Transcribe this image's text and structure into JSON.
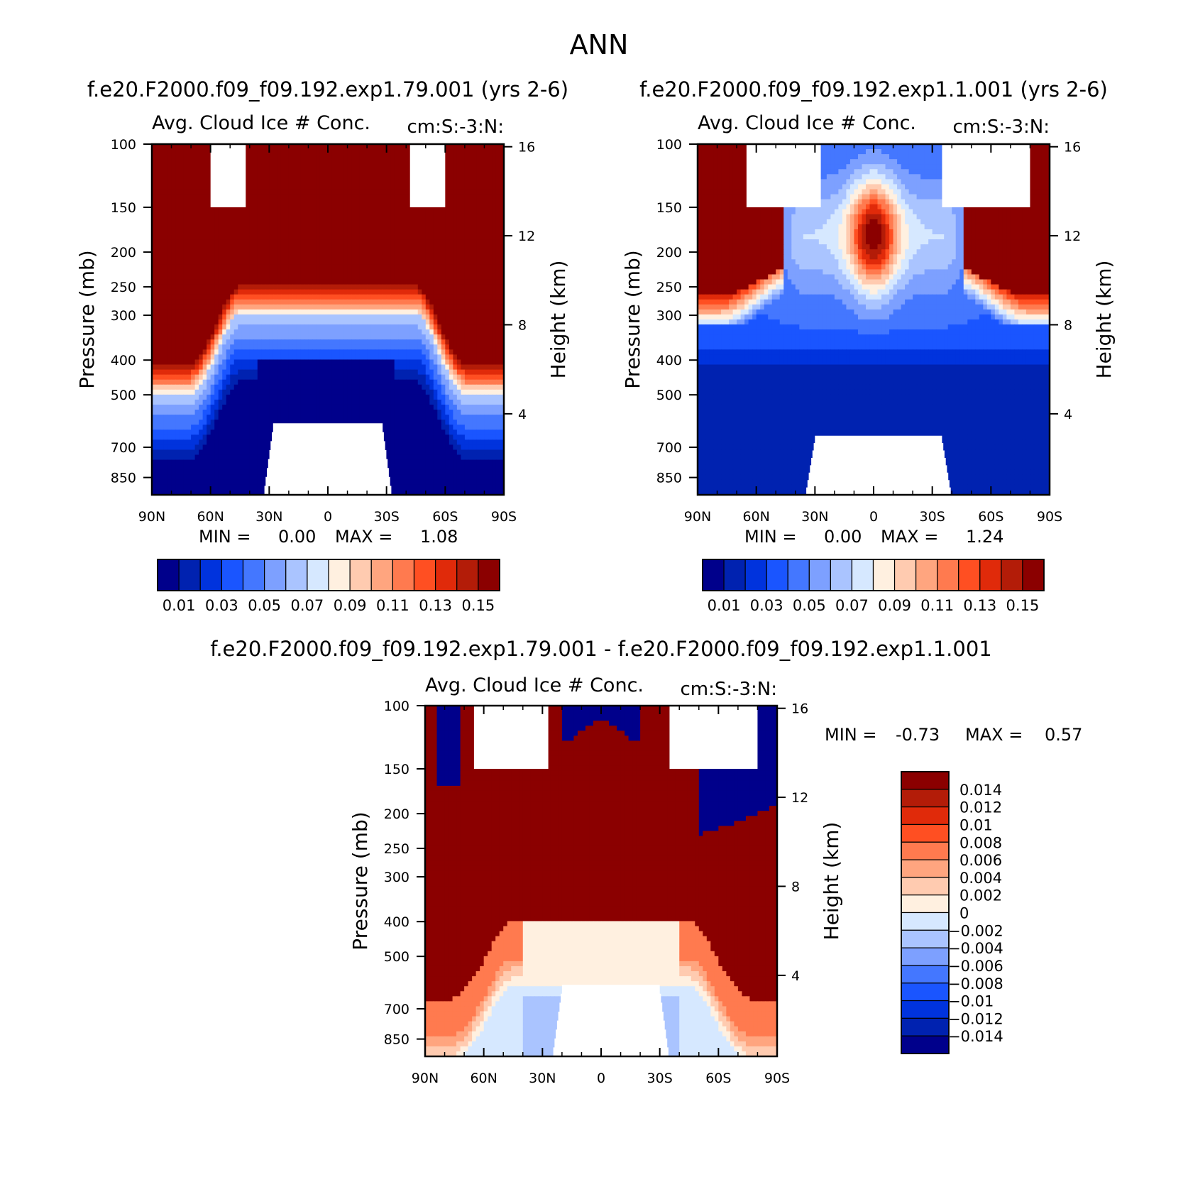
{
  "page_title": "ANN",
  "colors": {
    "frame": "#000000",
    "missing": "#ffffff"
  },
  "chart_data": [
    {
      "id": "p1",
      "type": "heatmap",
      "title": "f.e20.F2000.f09_f09.192.exp1.79.001 (yrs 2-6)",
      "subtitle_left": "Avg. Cloud Ice # Conc.",
      "subtitle_right": "cm:S:-3:N:",
      "ylabel": "Pressure (mb)",
      "ylabel_right": "Height (km)",
      "x_ticks": [
        "90N",
        "60N",
        "30N",
        "0",
        "30S",
        "60S",
        "90S"
      ],
      "y_ticks": [
        "100",
        "150",
        "200",
        "250",
        "300",
        "400",
        "500",
        "700",
        "850"
      ],
      "y_ticks_right": [
        "16",
        "12",
        "8",
        "4"
      ],
      "min_label": "MIN =",
      "min_value": "0.00",
      "max_label": "MAX =",
      "max_value": "1.08",
      "colorbar_labels": [
        "0.01",
        "0.03",
        "0.05",
        "0.07",
        "0.09",
        "0.11",
        "0.13",
        "0.15"
      ],
      "colorbar_colors": [
        "#00008b",
        "#0022b0",
        "#0033dd",
        "#1a55ff",
        "#4477ff",
        "#7da0ff",
        "#aac4ff",
        "#d6e8ff",
        "#fff0e0",
        "#ffcbb0",
        "#ffa57f",
        "#ff7a4f",
        "#ff4f22",
        "#e02a0a",
        "#b31c08",
        "#8b0000"
      ],
      "field": {
        "description": "zonal mean cloud ice number concentration",
        "x_range": [
          -90,
          90
        ],
        "p_range": [
          100,
          1000
        ],
        "high_above_pressure": {
          "poles": 500,
          "mid": 300
        },
        "missing_top_blocks_lat": [
          [
            -60,
            -42
          ],
          [
            42,
            60
          ]
        ],
        "missing_top_blocks_p": [
          100,
          150
        ],
        "surface_missing_lat": [
          -28,
          28
        ],
        "surface_missing_p": 600
      }
    },
    {
      "id": "p2",
      "type": "heatmap",
      "title": "f.e20.F2000.f09_f09.192.exp1.1.001 (yrs 2-6)",
      "subtitle_left": "Avg. Cloud Ice # Conc.",
      "subtitle_right": "cm:S:-3:N:",
      "ylabel": "Pressure (mb)",
      "ylabel_right": "Height (km)",
      "x_ticks": [
        "90N",
        "60N",
        "30N",
        "0",
        "30S",
        "60S",
        "90S"
      ],
      "y_ticks": [
        "100",
        "150",
        "200",
        "250",
        "300",
        "400",
        "500",
        "700",
        "850"
      ],
      "y_ticks_right": [
        "16",
        "12",
        "8",
        "4"
      ],
      "min_label": "MIN =",
      "min_value": "0.00",
      "max_label": "MAX =",
      "max_value": "1.24",
      "colorbar_labels": [
        "0.01",
        "0.03",
        "0.05",
        "0.07",
        "0.09",
        "0.11",
        "0.13",
        "0.15"
      ],
      "colorbar_colors": [
        "#00008b",
        "#0022b0",
        "#0033dd",
        "#1a55ff",
        "#4477ff",
        "#7da0ff",
        "#aac4ff",
        "#d6e8ff",
        "#fff0e0",
        "#ffcbb0",
        "#ffa57f",
        "#ff7a4f",
        "#ff4f22",
        "#e02a0a",
        "#b31c08",
        "#8b0000"
      ],
      "field": {
        "description": "zonal mean cloud ice number concentration",
        "x_range": [
          -90,
          90
        ],
        "p_range": [
          100,
          1000
        ],
        "missing_top_blocks_lat": [
          [
            -80,
            -35
          ],
          [
            27,
            65
          ]
        ],
        "missing_top_blocks_p": [
          100,
          150
        ],
        "surface_missing_lat": [
          -35,
          30
        ],
        "surface_missing_p": 650
      }
    },
    {
      "id": "p3",
      "type": "heatmap",
      "title": "f.e20.F2000.f09_f09.192.exp1.79.001 - f.e20.F2000.f09_f09.192.exp1.1.001",
      "subtitle_left": "Avg. Cloud Ice # Conc.",
      "subtitle_right": "cm:S:-3:N:",
      "ylabel": "Pressure (mb)",
      "ylabel_right": "Height (km)",
      "x_ticks": [
        "90N",
        "60N",
        "30N",
        "0",
        "30S",
        "60S",
        "90S"
      ],
      "y_ticks": [
        "100",
        "150",
        "200",
        "250",
        "300",
        "400",
        "500",
        "700",
        "850"
      ],
      "y_ticks_right": [
        "16",
        "12",
        "8",
        "4"
      ],
      "min_label": "MIN =",
      "min_value": "-0.73",
      "max_label": "MAX =",
      "max_value": "0.57",
      "colorbar_labels": [
        "0.014",
        "0.012",
        "0.01",
        "0.008",
        "0.006",
        "0.004",
        "0.002",
        "0",
        "-0.002",
        "-0.004",
        "-0.006",
        "-0.008",
        "-0.01",
        "-0.012",
        "-0.014"
      ],
      "colorbar_colors": [
        "#8b0000",
        "#b31c08",
        "#e02a0a",
        "#ff4f22",
        "#ff7a4f",
        "#ffa57f",
        "#ffcbb0",
        "#fff0e0",
        "#d6e8ff",
        "#aac4ff",
        "#7da0ff",
        "#4477ff",
        "#1a55ff",
        "#0033dd",
        "#0022b0",
        "#00008b"
      ],
      "field": {
        "description": "difference of zonal mean cloud ice number concentration",
        "x_range": [
          -90,
          90
        ],
        "p_range": [
          100,
          1000
        ],
        "missing_top_blocks_lat": [
          [
            -80,
            -35
          ],
          [
            27,
            65
          ]
        ],
        "missing_top_blocks_p": [
          100,
          150
        ],
        "surface_missing_lat": [
          -30,
          20
        ],
        "surface_missing_p": 600
      }
    }
  ]
}
